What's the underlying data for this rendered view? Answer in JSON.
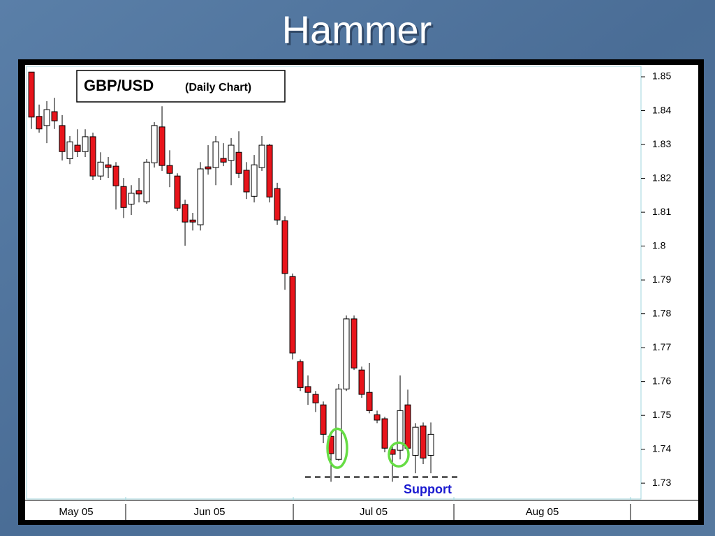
{
  "chart_data": {
    "type": "candlestick",
    "title": "Hammer",
    "label": "GBP/USD",
    "sublabel": "(Daily Chart)",
    "annotation": "Support",
    "support": 1.7318,
    "up_color": "#ffffff",
    "down_color": "#e8141b",
    "highlight_color": "#66dd44",
    "highlights": [
      40,
      48
    ],
    "open": [
      1.8514,
      1.8383,
      1.8356,
      1.8397,
      1.8356,
      1.8258,
      1.8298,
      1.8279,
      1.8323,
      1.8207,
      1.824,
      1.8236,
      1.8176,
      1.8124,
      1.8164,
      1.8131,
      1.8246,
      1.8352,
      1.8238,
      1.8207,
      1.8123,
      1.8077,
      1.8063,
      1.8234,
      1.8232,
      1.8259,
      1.8253,
      1.8277,
      1.8224,
      1.8147,
      1.8232,
      1.8298,
      1.817,
      1.8075,
      1.791,
      1.7659,
      1.7585,
      1.7562,
      1.7531,
      1.7438,
      1.737,
      1.7578,
      1.7785,
      1.7634,
      1.7568,
      1.7502,
      1.749,
      1.7399,
      1.7397,
      1.7531,
      1.7382,
      1.7469,
      1.7382
    ],
    "high": [
      1.8514,
      1.8418,
      1.8428,
      1.8438,
      1.8387,
      1.8325,
      1.8345,
      1.8345,
      1.8335,
      1.8277,
      1.8263,
      1.8248,
      1.8201,
      1.818,
      1.8201,
      1.8257,
      1.8366,
      1.8413,
      1.8283,
      1.8215,
      1.8137,
      1.8098,
      1.8248,
      1.8298,
      1.8325,
      1.8304,
      1.8319,
      1.8339,
      1.8248,
      1.8269,
      1.8325,
      1.8302,
      1.8187,
      1.8088,
      1.7919,
      1.7665,
      1.7618,
      1.7572,
      1.7541,
      1.7448,
      1.7593,
      1.7795,
      1.7795,
      1.7644,
      1.7655,
      1.7514,
      1.7496,
      1.7407,
      1.7618,
      1.7576,
      1.7477,
      1.7479,
      1.7479
    ],
    "low": [
      1.8346,
      1.8335,
      1.8304,
      1.8346,
      1.8253,
      1.8242,
      1.8263,
      1.8263,
      1.8195,
      1.8195,
      1.8201,
      1.8108,
      1.8083,
      1.8092,
      1.8129,
      1.8125,
      1.8232,
      1.8222,
      1.8174,
      1.8104,
      1.8001,
      1.8046,
      1.8046,
      1.8211,
      1.818,
      1.8236,
      1.818,
      1.8201,
      1.8139,
      1.8129,
      1.8222,
      1.8129,
      1.8063,
      1.7871,
      1.7665,
      1.7572,
      1.7531,
      1.751,
      1.7418,
      1.7304,
      1.7366,
      1.7572,
      1.7634,
      1.7552,
      1.7506,
      1.7477,
      1.7391,
      1.7304,
      1.737,
      1.7387,
      1.7329,
      1.7356,
      1.7329
    ],
    "close": [
      1.8381,
      1.8346,
      1.8403,
      1.837,
      1.8279,
      1.8308,
      1.8279,
      1.8323,
      1.8207,
      1.8248,
      1.8232,
      1.8178,
      1.8114,
      1.8156,
      1.8154,
      1.8248,
      1.8356,
      1.8238,
      1.8215,
      1.8112,
      1.8071,
      1.8071,
      1.8228,
      1.8228,
      1.8308,
      1.8248,
      1.8298,
      1.8215,
      1.816,
      1.824,
      1.8298,
      1.8145,
      1.8077,
      1.7919,
      1.7684,
      1.7582,
      1.7568,
      1.7537,
      1.7444,
      1.7387,
      1.7578,
      1.7785,
      1.764,
      1.7562,
      1.7514,
      1.7486,
      1.7403,
      1.7385,
      1.7514,
      1.7403,
      1.7465,
      1.7374,
      1.7444
    ],
    "ylim": [
      1.7253,
      1.8531
    ],
    "yticks": [
      1.85,
      1.84,
      1.83,
      1.82,
      1.81,
      1.8,
      1.79,
      1.78,
      1.77,
      1.76,
      1.75,
      1.74,
      1.73
    ],
    "xlim": [
      -0.64,
      79.36
    ],
    "xticks": [
      {
        "value": 12.27,
        "label": "May 05"
      },
      {
        "value": 34.09,
        "label": "Jun 05"
      },
      {
        "value": 55,
        "label": "Jul 05"
      },
      {
        "value": 78,
        "label": "Aug 05"
      }
    ]
  }
}
